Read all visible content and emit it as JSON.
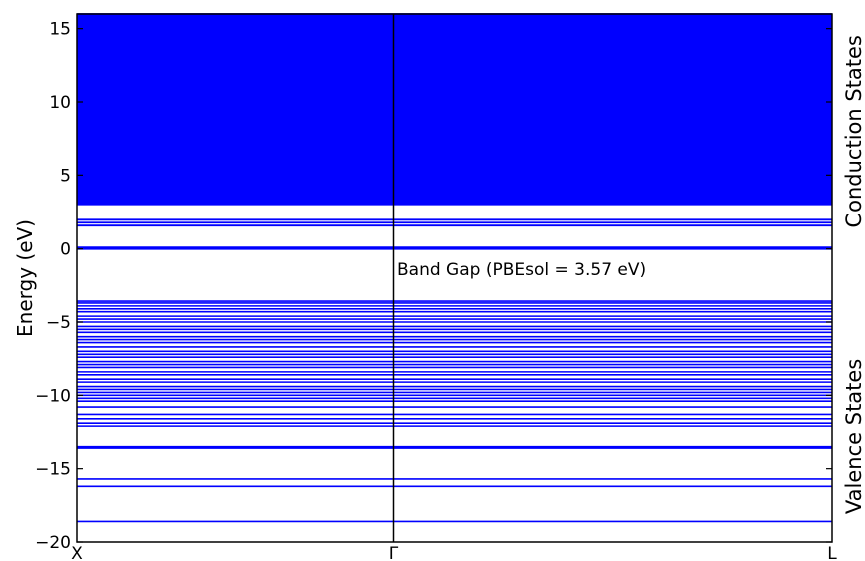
{
  "chart_data": {
    "type": "line",
    "title": "",
    "xlabel": "",
    "ylabel": "Energy (eV)",
    "ylim": [
      -20,
      16
    ],
    "yticks": [
      -20,
      -15,
      -10,
      -5,
      0,
      5,
      10,
      15
    ],
    "ytick_labels": [
      "−20",
      "−15",
      "−10",
      "−5",
      "0",
      "5",
      "10",
      "15"
    ],
    "kpoints": [
      "X",
      "Γ",
      "L"
    ],
    "grid": false,
    "line_color": "#0000ff",
    "side_labels": {
      "top": "Conduction States",
      "bottom": "Valence States"
    },
    "annotation": "Band Gap (PBEsol = 3.57 eV)",
    "band_gap_eV": 3.57,
    "valence_band_max_eV": -3.57,
    "conduction_band_min_eV": 0.0,
    "series": [
      {
        "name": "Valence States",
        "energies_eV": [
          -18.6,
          -16.2,
          -15.7,
          -13.6,
          -13.5,
          -12.1,
          -11.9,
          -11.6,
          -11.3,
          -10.8,
          -10.4,
          -10.2,
          -10.0,
          -9.8,
          -9.6,
          -9.4,
          -9.1,
          -8.9,
          -8.6,
          -8.4,
          -8.1,
          -7.9,
          -7.7,
          -7.4,
          -7.2,
          -7.0,
          -6.7,
          -6.4,
          -6.2,
          -6.0,
          -5.7,
          -5.5,
          -5.3,
          -5.0,
          -4.8,
          -4.6,
          -4.3,
          -4.1,
          -3.9,
          -3.7,
          -3.57
        ]
      },
      {
        "name": "Conduction States",
        "energies_eV": [
          0.0,
          0.1,
          1.6,
          1.8,
          2.0,
          3.0,
          3.3,
          3.6,
          3.9,
          4.2,
          4.5,
          4.8,
          5.0,
          5.2,
          5.5,
          5.8,
          6.1,
          6.4,
          6.7,
          7.0,
          7.3,
          7.6,
          7.9,
          8.2,
          8.5,
          8.8,
          9.1,
          9.4,
          9.7,
          10.0,
          10.3,
          10.6,
          10.9,
          11.2,
          11.5,
          11.8,
          12.1,
          12.4,
          12.7,
          13.0,
          13.3,
          13.6,
          13.9,
          14.2,
          14.5,
          14.8,
          15.1,
          15.4,
          15.7,
          16.0
        ]
      }
    ]
  }
}
